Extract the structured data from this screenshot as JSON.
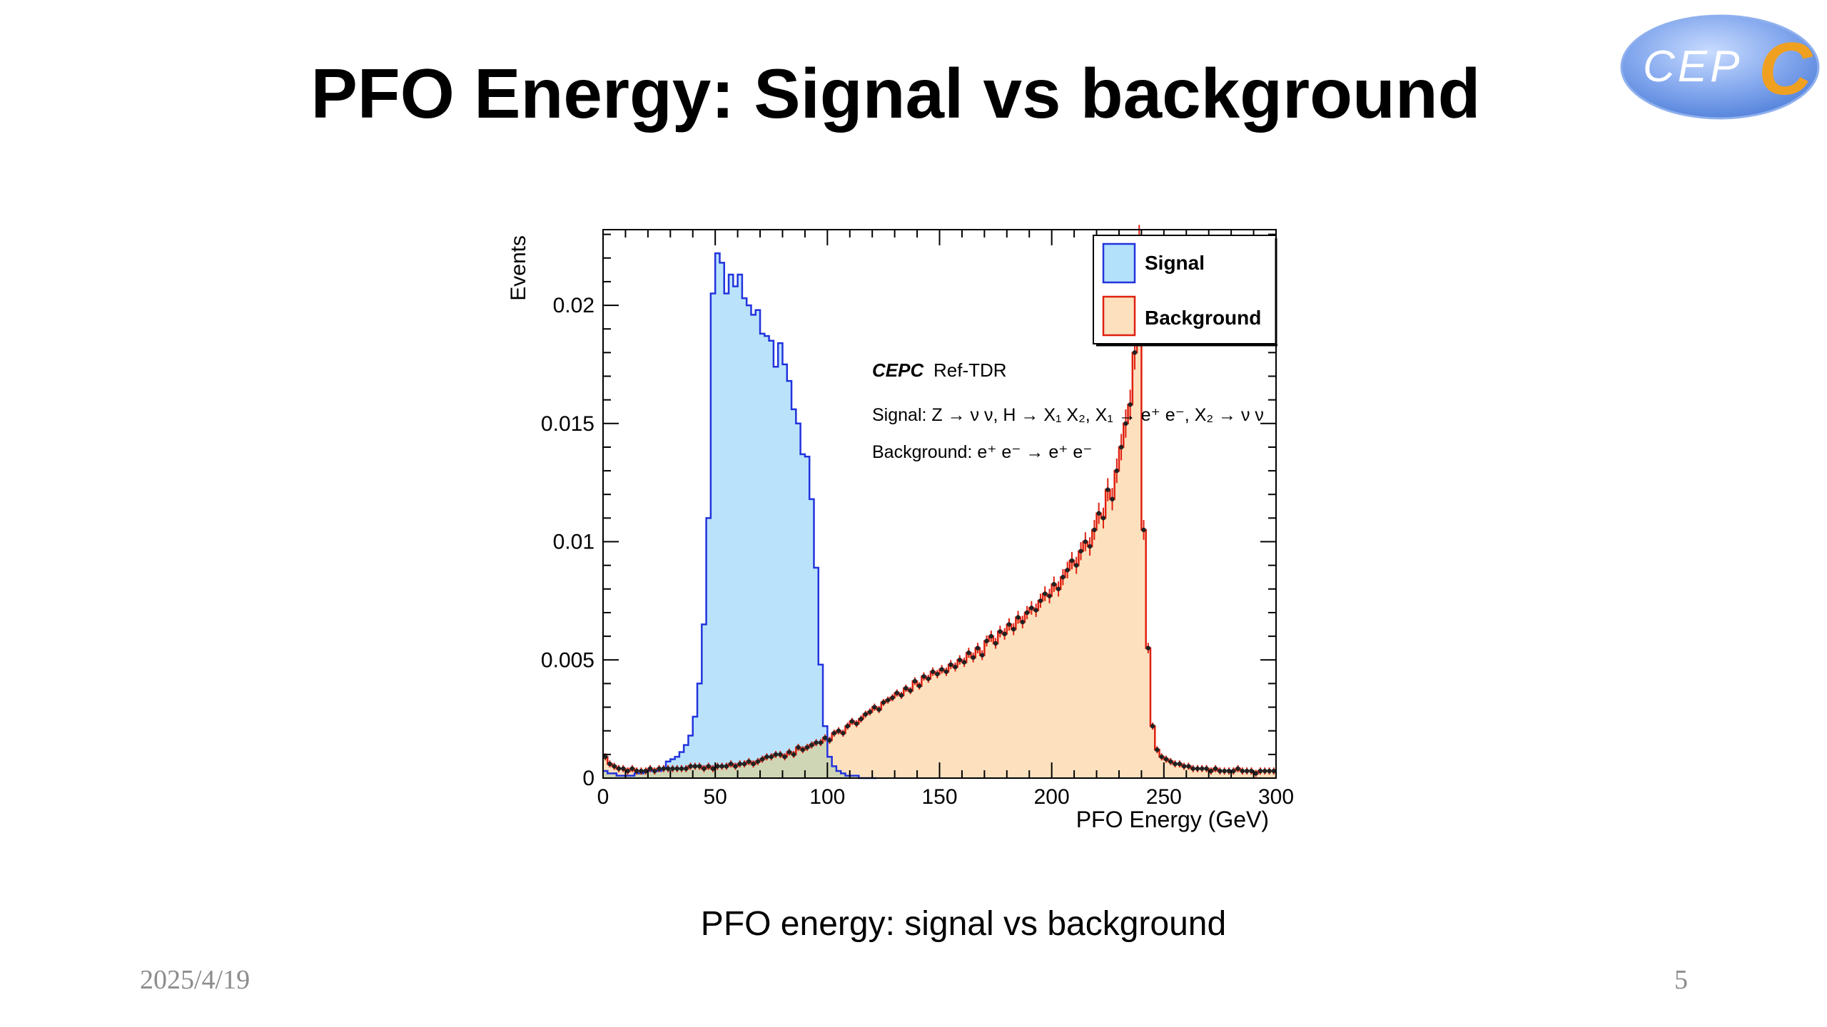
{
  "slide": {
    "title": "PFO Energy: Signal vs background",
    "caption": "PFO energy: signal vs background",
    "date": "2025/4/19",
    "page_number": "5",
    "logo_text": "CEPC"
  },
  "colors": {
    "signal_fill": "#b3e0fb",
    "signal_line": "#2233dd",
    "background_fill": "#fde1bf",
    "background_line": "#e02010",
    "overlap_fill": "#cfd6b6",
    "marker": "#222222",
    "logo_blue": "#4f7fd8",
    "logo_orange": "#f0a020"
  },
  "chart_data": {
    "type": "histogram",
    "xlabel": "PFO Energy (GeV)",
    "ylabel": "Events",
    "xlim": [
      0,
      300
    ],
    "ylim": [
      0,
      0.0232
    ],
    "x_ticks": [
      "0",
      "50",
      "100",
      "150",
      "200",
      "250",
      "300"
    ],
    "y_ticks": [
      "0",
      "0.005",
      "0.01",
      "0.015",
      "0.02"
    ],
    "legend": {
      "position": "top-right",
      "entries": [
        "Signal",
        "Background"
      ]
    },
    "annotations": {
      "experiment": "CEPC",
      "tag": "Ref-TDR",
      "signal_process": "Signal: Z → ν ν, H → X₁ X₂, X₁ → e⁺ e⁻, X₂ → ν ν",
      "background_process": "Background: e⁺ e⁻ → e⁺ e⁻"
    },
    "bin_width": 2,
    "series": [
      {
        "name": "Signal",
        "x": [
          1,
          3,
          5,
          7,
          9,
          11,
          13,
          15,
          17,
          19,
          21,
          23,
          25,
          27,
          29,
          31,
          33,
          35,
          37,
          39,
          41,
          43,
          45,
          47,
          49,
          51,
          53,
          55,
          57,
          59,
          61,
          63,
          65,
          67,
          69,
          71,
          73,
          75,
          77,
          79,
          81,
          83,
          85,
          87,
          89,
          91,
          93,
          95,
          97,
          99,
          101,
          103,
          105,
          107,
          109,
          111,
          113,
          115,
          117,
          119,
          121
        ],
        "values": [
          0.0003,
          0.0002,
          0.0002,
          0.0001,
          0.0001,
          0.0001,
          0.0001,
          0.0002,
          0.0002,
          0.0003,
          0.0003,
          0.0003,
          0.0003,
          0.0004,
          0.0007,
          0.0008,
          0.0009,
          0.0011,
          0.0014,
          0.0018,
          0.0026,
          0.004,
          0.0065,
          0.011,
          0.0205,
          0.0222,
          0.0218,
          0.0205,
          0.0213,
          0.0208,
          0.0213,
          0.0203,
          0.02,
          0.0196,
          0.0198,
          0.0188,
          0.0187,
          0.0185,
          0.0174,
          0.0184,
          0.0175,
          0.0168,
          0.0156,
          0.015,
          0.0137,
          0.0136,
          0.0118,
          0.0089,
          0.0048,
          0.0022,
          0.0009,
          0.0005,
          0.0003,
          0.0002,
          0.0001,
          0.0001,
          0.0001,
          0.0,
          0.0,
          0.0,
          0.0
        ]
      },
      {
        "name": "Background",
        "x": [
          1,
          3,
          5,
          7,
          9,
          11,
          13,
          15,
          17,
          19,
          21,
          23,
          25,
          27,
          29,
          31,
          33,
          35,
          37,
          39,
          41,
          43,
          45,
          47,
          49,
          51,
          53,
          55,
          57,
          59,
          61,
          63,
          65,
          67,
          69,
          71,
          73,
          75,
          77,
          79,
          81,
          83,
          85,
          87,
          89,
          91,
          93,
          95,
          97,
          99,
          101,
          103,
          105,
          107,
          109,
          111,
          113,
          115,
          117,
          119,
          121,
          123,
          125,
          127,
          129,
          131,
          133,
          135,
          137,
          139,
          141,
          143,
          145,
          147,
          149,
          151,
          153,
          155,
          157,
          159,
          161,
          163,
          165,
          167,
          169,
          171,
          173,
          175,
          177,
          179,
          181,
          183,
          185,
          187,
          189,
          191,
          193,
          195,
          197,
          199,
          201,
          203,
          205,
          207,
          209,
          211,
          213,
          215,
          217,
          219,
          221,
          223,
          225,
          227,
          229,
          231,
          233,
          235,
          237,
          239,
          241,
          243,
          245,
          247,
          249,
          251,
          253,
          255,
          257,
          259,
          261,
          263,
          265,
          267,
          269,
          271,
          273,
          275,
          277,
          279,
          281,
          283,
          285,
          287,
          289,
          291,
          293,
          295,
          297,
          299
        ],
        "values": [
          0.0009,
          0.0006,
          0.0005,
          0.0004,
          0.0004,
          0.0003,
          0.0004,
          0.0003,
          0.0003,
          0.0003,
          0.0004,
          0.0003,
          0.0004,
          0.0004,
          0.0004,
          0.0004,
          0.0004,
          0.0004,
          0.0004,
          0.0005,
          0.0005,
          0.0005,
          0.0004,
          0.0005,
          0.0004,
          0.0005,
          0.0005,
          0.0005,
          0.0006,
          0.0005,
          0.0006,
          0.0006,
          0.0007,
          0.0006,
          0.0007,
          0.0008,
          0.0009,
          0.0009,
          0.001,
          0.001,
          0.0009,
          0.0011,
          0.001,
          0.0013,
          0.0012,
          0.0013,
          0.0014,
          0.0015,
          0.0015,
          0.0017,
          0.0016,
          0.0019,
          0.002,
          0.0019,
          0.0022,
          0.0024,
          0.0023,
          0.0025,
          0.0027,
          0.0028,
          0.003,
          0.0029,
          0.0032,
          0.0033,
          0.0034,
          0.0036,
          0.0035,
          0.0038,
          0.0037,
          0.0041,
          0.0039,
          0.0043,
          0.0042,
          0.0045,
          0.0044,
          0.0046,
          0.0045,
          0.0048,
          0.0047,
          0.005,
          0.0049,
          0.0053,
          0.0051,
          0.0055,
          0.0052,
          0.0058,
          0.006,
          0.0057,
          0.0062,
          0.0061,
          0.0065,
          0.0063,
          0.0068,
          0.0066,
          0.007,
          0.0072,
          0.0071,
          0.0075,
          0.0078,
          0.0077,
          0.0082,
          0.008,
          0.0085,
          0.0088,
          0.0092,
          0.009,
          0.0096,
          0.01,
          0.0098,
          0.0105,
          0.0112,
          0.011,
          0.0122,
          0.0118,
          0.013,
          0.014,
          0.015,
          0.0158,
          0.018,
          0.0225,
          0.0105,
          0.0055,
          0.0022,
          0.0012,
          0.0009,
          0.0008,
          0.0007,
          0.0006,
          0.0006,
          0.0005,
          0.0005,
          0.0004,
          0.0004,
          0.0004,
          0.0004,
          0.0003,
          0.0004,
          0.0003,
          0.0003,
          0.0003,
          0.0003,
          0.0004,
          0.0003,
          0.0003,
          0.0003,
          0.0002,
          0.0003,
          0.0003,
          0.0003,
          0.0003
        ]
      }
    ],
    "grid": false
  }
}
